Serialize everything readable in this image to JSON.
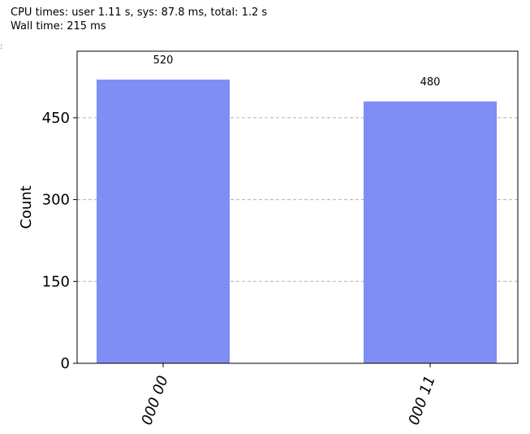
{
  "output": {
    "line1": "CPU times: user 1.11 s, sys: 87.8 ms, total: 1.2 s",
    "line2": "Wall time: 215 ms"
  },
  "side_mark": ":",
  "chart_data": {
    "type": "bar",
    "categories": [
      "000 00",
      "000 11"
    ],
    "values": [
      520,
      480
    ],
    "xlabel": "",
    "ylabel": "Count",
    "ylim": [
      0,
      572
    ],
    "yticks": [
      0,
      150,
      300,
      450
    ],
    "grid": "y-dashed",
    "bar_color": "#7f8ef5",
    "grid_color": "#b0b0b0",
    "data_labels": [
      "520",
      "480"
    ],
    "xtick_rotation": "rotated"
  }
}
